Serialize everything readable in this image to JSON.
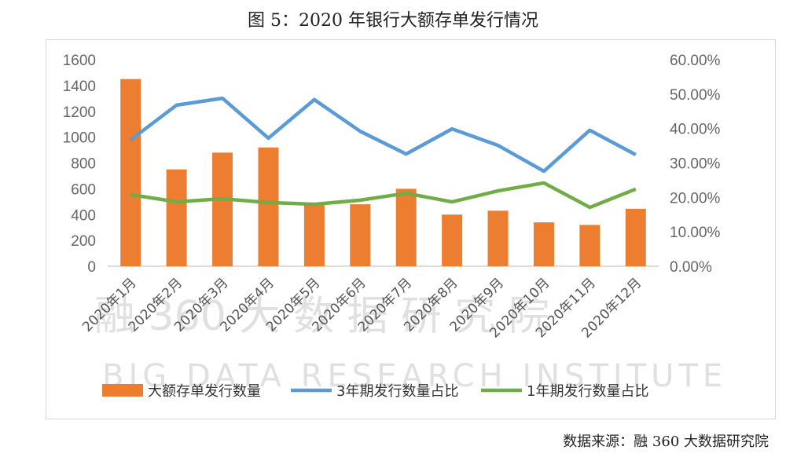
{
  "title": "图 5：2020 年银行大额存单发行情况",
  "source": "数据来源：融 360 大数据研究院",
  "watermark": {
    "line1": "融 360 大 数 据 研 究 院",
    "line2": "BIG DATA RESEARCH INSTITUTE"
  },
  "chart_data": {
    "type": "bar",
    "categories": [
      "2020年1月",
      "2020年2月",
      "2020年3月",
      "2020年4月",
      "2020年5月",
      "2020年6月",
      "2020年7月",
      "2020年8月",
      "2020年9月",
      "2020年10月",
      "2020年11月",
      "2020年12月"
    ],
    "series": [
      {
        "name": "大额存单发行数量",
        "type": "bar",
        "axis": "left",
        "color": "#ED7D31",
        "values": [
          1450,
          750,
          880,
          920,
          490,
          480,
          600,
          400,
          430,
          340,
          320,
          445
        ]
      },
      {
        "name": "3年期发行数量占比",
        "type": "line",
        "axis": "right",
        "color": "#5B9BD5",
        "values": [
          36.7,
          46.8,
          48.8,
          37.2,
          48.4,
          39.2,
          32.6,
          39.9,
          35.1,
          27.6,
          39.5,
          32.4
        ]
      },
      {
        "name": "1年期发行数量占比",
        "type": "line",
        "axis": "right",
        "color": "#70AD47",
        "values": [
          20.8,
          18.7,
          19.6,
          18.5,
          18.0,
          19.2,
          21.2,
          18.7,
          21.9,
          24.2,
          17.1,
          22.4
        ]
      }
    ],
    "left_axis": {
      "ylim": [
        0,
        1600
      ],
      "ticks": [
        "0",
        "200",
        "400",
        "600",
        "800",
        "1000",
        "1200",
        "1400",
        "1600"
      ]
    },
    "right_axis": {
      "ylim": [
        0,
        60
      ],
      "ticks": [
        "0.00%",
        "10.00%",
        "20.00%",
        "30.00%",
        "40.00%",
        "50.00%",
        "60.00%"
      ]
    },
    "grid": false,
    "legend": "bottom"
  }
}
